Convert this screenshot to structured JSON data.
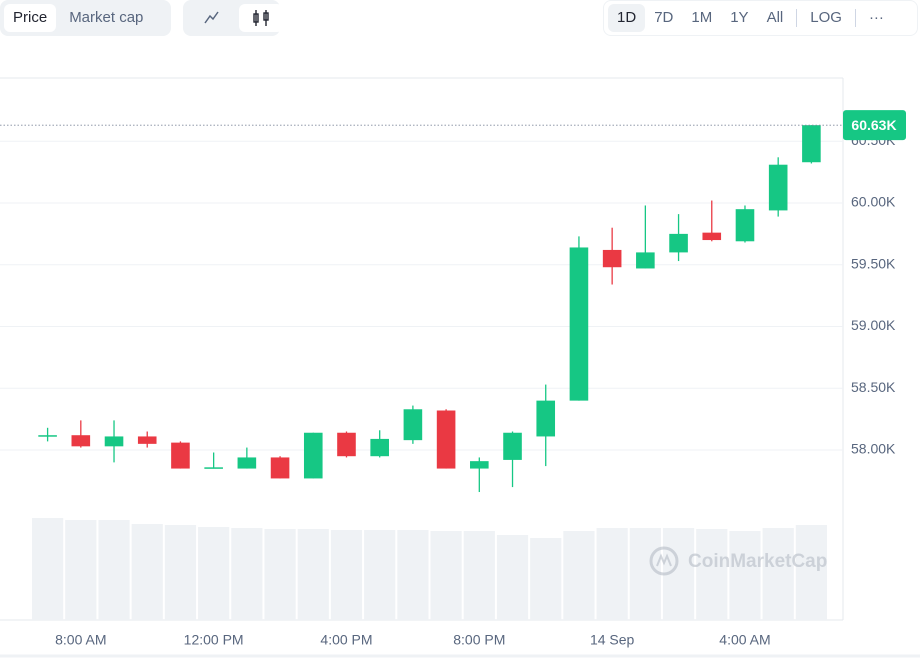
{
  "toolbar": {
    "data_tabs": [
      "Price",
      "Market cap"
    ],
    "active_data_tab": "Price",
    "ranges": [
      "1D",
      "7D",
      "1M",
      "1Y",
      "All"
    ],
    "active_range": "1D",
    "scale_button": "LOG",
    "more": "···"
  },
  "watermark": "CoinMarketCap",
  "chart_data": {
    "type": "candlestick",
    "categories": [
      null,
      "8:00 AM",
      null,
      null,
      null,
      "12:00 PM",
      null,
      null,
      null,
      "4:00 PM",
      null,
      null,
      null,
      "8:00 PM",
      null,
      null,
      null,
      "14 Sep",
      null,
      null,
      null,
      "4:00 AM",
      null,
      null
    ],
    "open": [
      58120,
      58120,
      58030,
      58110,
      58060,
      57850,
      57850,
      57940,
      57770,
      58140,
      57950,
      58080,
      58320,
      57850,
      57920,
      58110,
      58400,
      59620,
      59470,
      59600,
      59760,
      59690,
      59940,
      60330
    ],
    "close": [
      58120,
      58030,
      58110,
      58050,
      57850,
      57860,
      57940,
      57770,
      58140,
      57950,
      58090,
      58330,
      57850,
      57910,
      58140,
      58400,
      59640,
      59480,
      59600,
      59750,
      59700,
      59950,
      60310,
      60630
    ],
    "high": [
      58180,
      58240,
      58240,
      58150,
      58070,
      57980,
      58020,
      57950,
      58140,
      58150,
      58160,
      58360,
      58330,
      57940,
      58150,
      58530,
      59730,
      59800,
      59980,
      59910,
      60020,
      59980,
      60370,
      60630
    ],
    "low": [
      58070,
      58020,
      57900,
      58020,
      57850,
      57850,
      57850,
      57770,
      57770,
      57940,
      57940,
      58050,
      57850,
      57660,
      57700,
      57870,
      58400,
      59340,
      59470,
      59530,
      59690,
      59680,
      59890,
      60320
    ],
    "volume": [
      102,
      100,
      100,
      96,
      95,
      93,
      92,
      91,
      91,
      90,
      90,
      90,
      89,
      89,
      85,
      82,
      89,
      92,
      92,
      92,
      91,
      89,
      92,
      95
    ],
    "volume_lim": [
      0,
      105
    ],
    "up_color": "#16c784",
    "down_color": "#ea3943",
    "volume_color": "#eff2f5",
    "ylim": [
      57474,
      61012
    ],
    "yticks": [
      {
        "value": 58000,
        "label": "58.00K"
      },
      {
        "value": 58500,
        "label": "58.50K"
      },
      {
        "value": 59000,
        "label": "59.00K"
      },
      {
        "value": 59500,
        "label": "59.50K"
      },
      {
        "value": 60000,
        "label": "60.00K"
      },
      {
        "value": 60500,
        "label": "60.50K"
      }
    ],
    "grid": true,
    "last_price": {
      "value": 60630,
      "label": "60.63K"
    }
  }
}
